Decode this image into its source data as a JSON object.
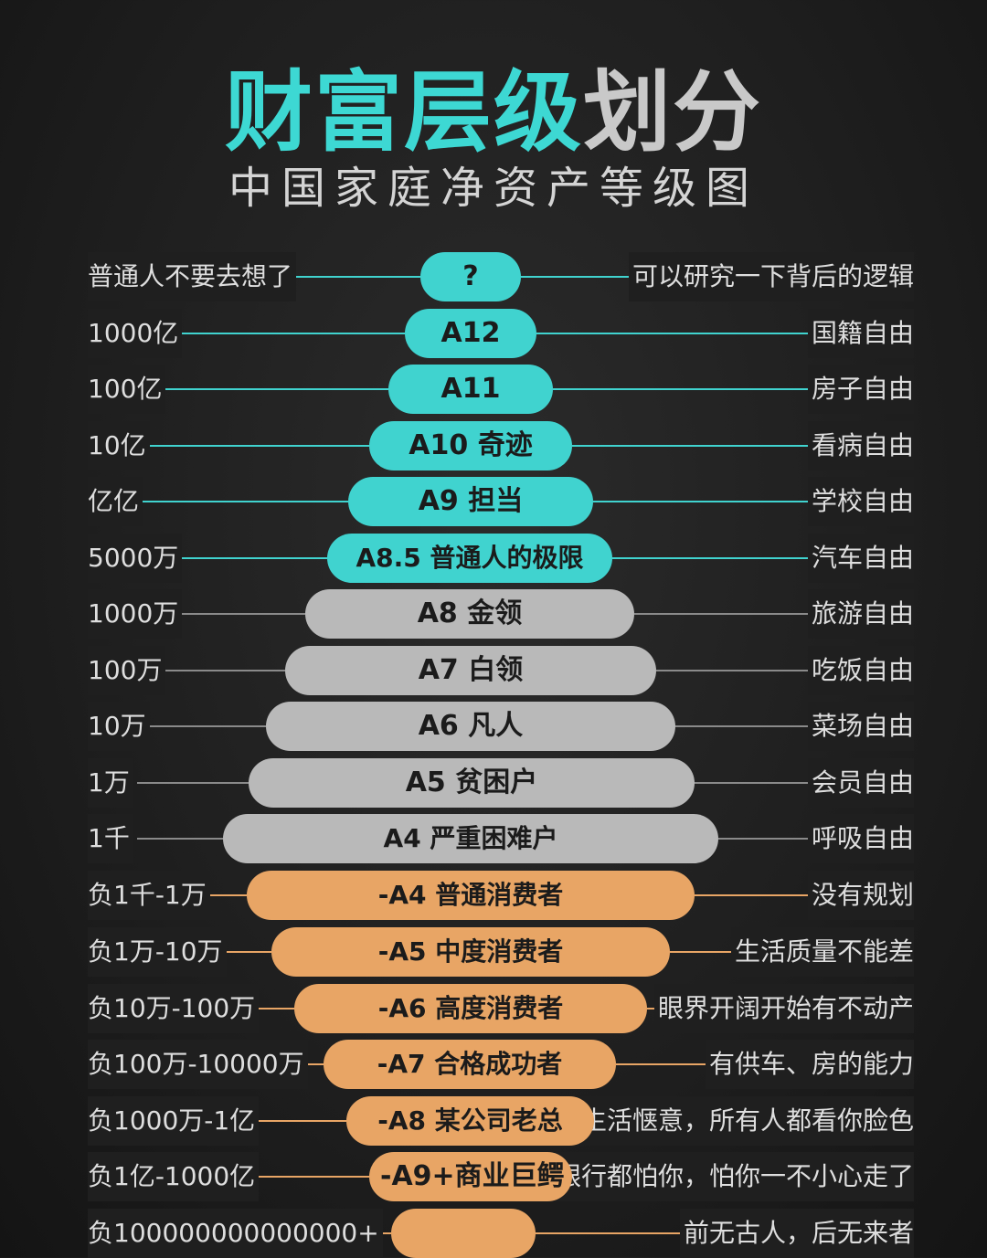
{
  "title": {
    "part1": "财富层级",
    "part2": "划分"
  },
  "subtitle": "中国家庭净资产等级图",
  "colors": {
    "teal": "#40d3cf",
    "gray": "#b9b9b9",
    "orange": "#e8a565",
    "background": "#1f1f1f"
  },
  "tiers": [
    {
      "left": "普通人不要去想了",
      "level": "?",
      "right": "可以研究一下背后的逻辑",
      "color": "teal"
    },
    {
      "left": "1000亿",
      "level": "A12",
      "right": "国籍自由",
      "color": "teal"
    },
    {
      "left": "100亿",
      "level": "A11",
      "right": "房子自由",
      "color": "teal"
    },
    {
      "left": "10亿",
      "level": "A10  奇迹",
      "right": "看病自由",
      "color": "teal"
    },
    {
      "left": "亿亿",
      "level": "A9  担当",
      "right": "学校自由",
      "color": "teal"
    },
    {
      "left": "5000万",
      "level": "A8.5  普通人的极限",
      "right": "汽车自由",
      "color": "teal"
    },
    {
      "left": "1000万",
      "level": "A8  金领",
      "right": "旅游自由",
      "color": "gray"
    },
    {
      "left": "100万",
      "level": "A7  白领",
      "right": "吃饭自由",
      "color": "gray"
    },
    {
      "left": "10万",
      "level": "A6  凡人",
      "right": "菜场自由",
      "color": "gray"
    },
    {
      "left": "1万",
      "level": "A5  贫困户",
      "right": "会员自由",
      "color": "gray"
    },
    {
      "left": "1千",
      "level": "A4  严重困难户",
      "right": "呼吸自由",
      "color": "gray"
    },
    {
      "left": "负1千-1万",
      "level": "-A4 普通消费者",
      "right": "没有规划",
      "color": "orange"
    },
    {
      "left": "负1万-10万",
      "level": "-A5 中度消费者",
      "right": "生活质量不能差",
      "color": "orange"
    },
    {
      "left": "负10万-100万",
      "level": "-A6 高度消费者",
      "right": "眼界开阔开始有不动产",
      "color": "orange"
    },
    {
      "left": "负100万-10000万",
      "level": "-A7 合格成功者",
      "right": "有供车、房的能力",
      "color": "orange"
    },
    {
      "left": "负1000万-1亿",
      "level": "-A8 某公司老总",
      "right": "生活惬意，所有人都看你脸色",
      "color": "orange"
    },
    {
      "left": "负1亿-1000亿",
      "level": "-A9+商业巨鳄",
      "right": "银行都怕你，怕你一不小心走了",
      "color": "orange"
    },
    {
      "left": "负100000000000000+",
      "level": "",
      "right": "前无古人，后无来者",
      "color": "orange"
    }
  ]
}
